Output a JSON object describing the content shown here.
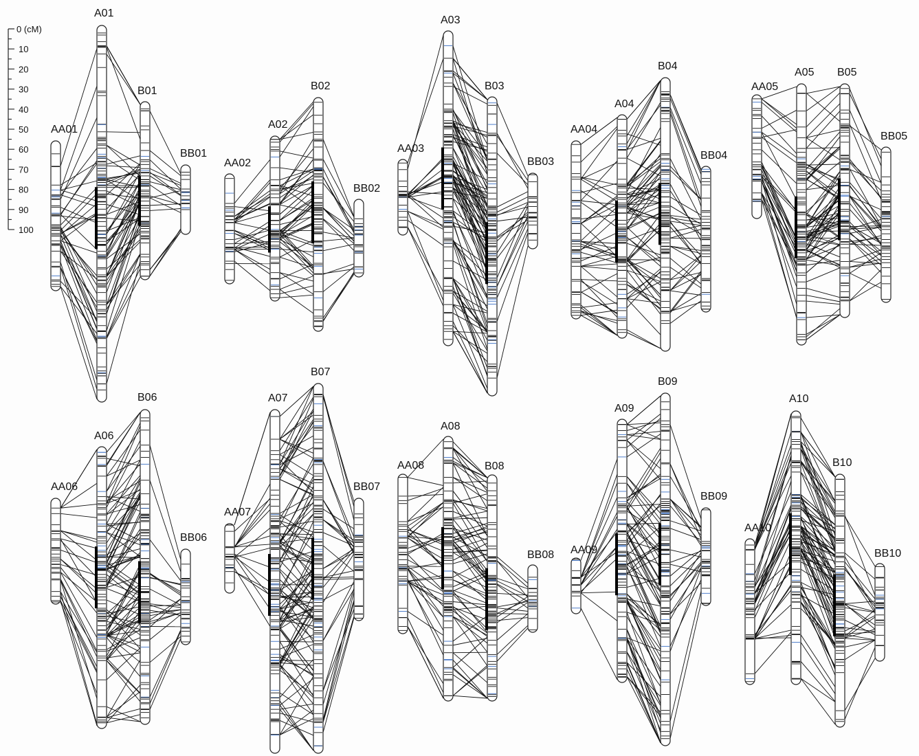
{
  "scale": {
    "unit_label": "0 (cM)",
    "ticks": [
      "10",
      "20",
      "30",
      "40",
      "50",
      "60",
      "70",
      "80",
      "90",
      "100"
    ]
  },
  "colors": {
    "marker": "#111111",
    "marker_blue": "#3a6fc4",
    "outline": "#222222",
    "link": "#111111"
  },
  "chromosomes": [
    {
      "label": "AA01"
    },
    {
      "label": "A01"
    },
    {
      "label": "B01"
    },
    {
      "label": "BB01"
    },
    {
      "label": "AA02"
    },
    {
      "label": "A02"
    },
    {
      "label": "B02"
    },
    {
      "label": "BB02"
    },
    {
      "label": "AA03"
    },
    {
      "label": "A03"
    },
    {
      "label": "B03"
    },
    {
      "label": "BB03"
    },
    {
      "label": "AA04"
    },
    {
      "label": "A04"
    },
    {
      "label": "B04"
    },
    {
      "label": "BB04"
    },
    {
      "label": "AA05"
    },
    {
      "label": "A05"
    },
    {
      "label": "B05"
    },
    {
      "label": "BB05"
    },
    {
      "label": "AA06"
    },
    {
      "label": "A06"
    },
    {
      "label": "B06"
    },
    {
      "label": "BB06"
    },
    {
      "label": "AA07"
    },
    {
      "label": "A07"
    },
    {
      "label": "B07"
    },
    {
      "label": "BB07"
    },
    {
      "label": "AA08"
    },
    {
      "label": "A08"
    },
    {
      "label": "B08"
    },
    {
      "label": "BB08"
    },
    {
      "label": "AA09"
    },
    {
      "label": "A09"
    },
    {
      "label": "B09"
    },
    {
      "label": "BB09"
    },
    {
      "label": "AA10"
    },
    {
      "label": "A10"
    },
    {
      "label": "B10"
    },
    {
      "label": "BB10"
    }
  ]
}
